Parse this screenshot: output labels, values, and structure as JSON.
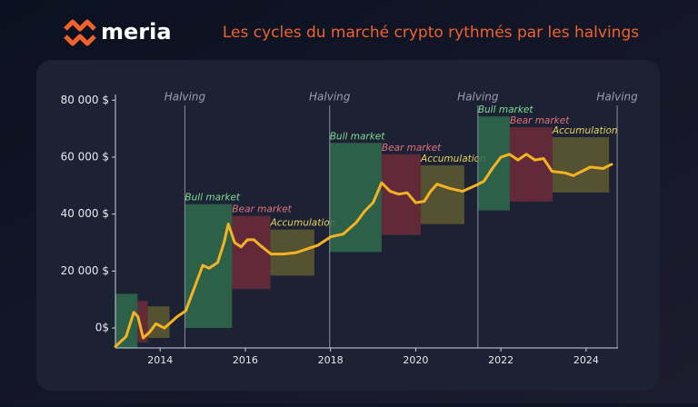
{
  "brand": "meria",
  "chart_data": {
    "type": "line",
    "title": "Les cycles du marché crypto rythmés par les halvings",
    "xlim": [
      2012.95,
      2024.75
    ],
    "ylim": [
      -7000,
      82000
    ],
    "xticks": [
      2014,
      2016,
      2018,
      2020,
      2022,
      2024
    ],
    "yticks": [
      {
        "value": 0,
        "label": "0$"
      },
      {
        "value": 20000,
        "label": "20 000 $"
      },
      {
        "value": 40000,
        "label": "40 000 $"
      },
      {
        "value": 60000,
        "label": "60 000 $"
      },
      {
        "value": 80000,
        "label": "80 000 $"
      }
    ],
    "halvings": [
      {
        "x": 2014.58,
        "label": "Halving"
      },
      {
        "x": 2017.98,
        "label": "Halving"
      },
      {
        "x": 2021.46,
        "label": "Halving"
      },
      {
        "x": 2024.73,
        "label": "Halving"
      }
    ],
    "regions": [
      {
        "x": [
          2012.94,
          2013.47
        ],
        "y": [
          -7000,
          12000
        ],
        "color": "#2f6b4c"
      },
      {
        "x": [
          2013.47,
          2013.71
        ],
        "y": [
          -5000,
          9500
        ],
        "color": "#6e2c3b"
      },
      {
        "x": [
          2013.71,
          2014.22
        ],
        "y": [
          -3500,
          7600
        ],
        "color": "#5e5a31"
      },
      {
        "name": "Bull market",
        "x": [
          2014.58,
          2015.69
        ],
        "y": [
          0,
          43500
        ],
        "color": "#2f6b4c",
        "label_color": "#7fdc95"
      },
      {
        "name": "Bear market",
        "x": [
          2015.69,
          2016.59
        ],
        "y": [
          13700,
          39400
        ],
        "color": "#6e2c3b",
        "label_color": "#e4717c"
      },
      {
        "name": "Accumulation",
        "x": [
          2016.59,
          2017.62
        ],
        "y": [
          18400,
          34600
        ],
        "color": "#5e5a31",
        "label_color": "#e8d35a"
      },
      {
        "name": "Bull market",
        "x": [
          2017.98,
          2019.2
        ],
        "y": [
          26700,
          65000
        ],
        "color": "#2f6b4c",
        "label_color": "#7fdc95"
      },
      {
        "name": "Bear market",
        "x": [
          2019.2,
          2020.12
        ],
        "y": [
          32700,
          61000
        ],
        "color": "#6e2c3b",
        "label_color": "#e4717c"
      },
      {
        "name": "Accumulation",
        "x": [
          2020.12,
          2021.14
        ],
        "y": [
          36500,
          57100
        ],
        "color": "#5e5a31",
        "label_color": "#e8d35a"
      },
      {
        "name": "Bull market",
        "x": [
          2021.46,
          2022.21
        ],
        "y": [
          41300,
          74300
        ],
        "color": "#2f6b4c",
        "label_color": "#7fdc95"
      },
      {
        "name": "Bear market",
        "x": [
          2022.21,
          2023.21
        ],
        "y": [
          44400,
          70500
        ],
        "color": "#6e2c3b",
        "label_color": "#e4717c"
      },
      {
        "name": "Accumulation",
        "x": [
          2023.21,
          2024.54
        ],
        "y": [
          47600,
          67000
        ],
        "color": "#5e5a31",
        "label_color": "#e8d35a"
      }
    ],
    "series": [
      {
        "color": "#f5b324",
        "x": [
          2012.95,
          2013.2,
          2013.38,
          2013.48,
          2013.6,
          2013.75,
          2013.9,
          2014.1,
          2014.4,
          2014.6,
          2014.8,
          2015.0,
          2015.15,
          2015.35,
          2015.5,
          2015.6,
          2015.75,
          2015.9,
          2016.05,
          2016.2,
          2016.35,
          2016.6,
          2016.9,
          2017.2,
          2017.4,
          2017.7,
          2018.0,
          2018.3,
          2018.6,
          2018.8,
          2019.0,
          2019.2,
          2019.4,
          2019.6,
          2019.8,
          2020.0,
          2020.2,
          2020.35,
          2020.5,
          2020.8,
          2021.1,
          2021.4,
          2021.6,
          2021.8,
          2022.0,
          2022.2,
          2022.4,
          2022.6,
          2022.8,
          2023.0,
          2023.2,
          2023.5,
          2023.7,
          2023.9,
          2024.1,
          2024.4,
          2024.6
        ],
        "values": [
          -6500,
          -3000,
          5500,
          4000,
          -3500,
          -1500,
          1500,
          0,
          4000,
          6000,
          14000,
          22000,
          21000,
          23000,
          30000,
          36500,
          30000,
          28500,
          31000,
          31000,
          29000,
          26000,
          26000,
          26500,
          27500,
          29000,
          32000,
          33000,
          37000,
          41000,
          44000,
          51000,
          48000,
          47000,
          47500,
          44000,
          44500,
          48000,
          50500,
          49000,
          48000,
          50000,
          51500,
          56000,
          60000,
          61000,
          59000,
          61000,
          59000,
          59500,
          55000,
          54500,
          53500,
          55000,
          56500,
          56000,
          57500
        ]
      }
    ]
  }
}
